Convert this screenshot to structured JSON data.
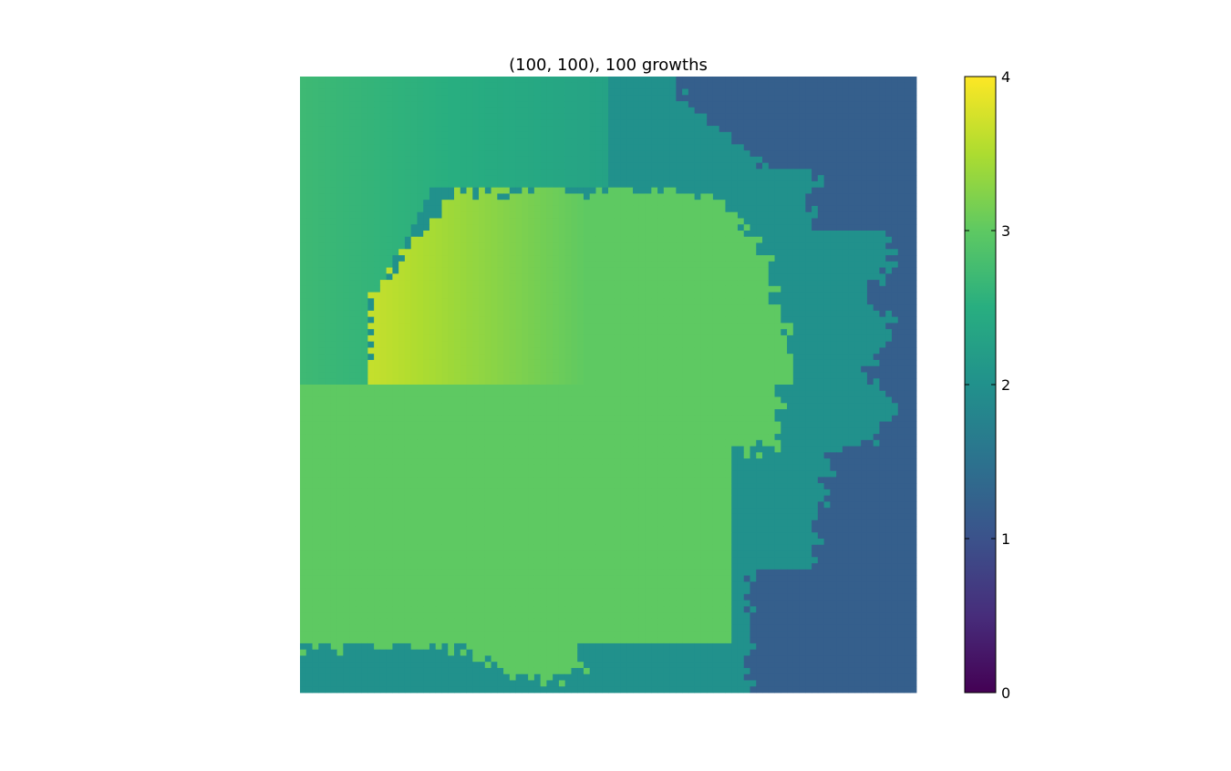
{
  "chart_data": {
    "type": "heatmap",
    "title": "(100, 100), 100 growths",
    "grid_shape": [
      100,
      100
    ],
    "xlabel": "",
    "ylabel": "",
    "axes_visible": false,
    "grid": false,
    "colormap": "viridis",
    "colorbar": {
      "range": [
        0,
        4
      ],
      "ticks": [
        0,
        1,
        2,
        3,
        4
      ],
      "tick_labels": [
        "0",
        "1",
        "2",
        "3",
        "4"
      ],
      "placement": "right"
    },
    "regions": [
      {
        "name": "outer",
        "value": 1.2,
        "description": "right edge band"
      },
      {
        "name": "band",
        "value": 2.0,
        "description": "ring around the blob"
      },
      {
        "name": "top-left",
        "value_range": [
          2.7,
          2.3
        ],
        "description": "gradient above midline, left to right"
      },
      {
        "name": "blob-lower",
        "value": 3.0
      },
      {
        "name": "blob-upper",
        "value_range": [
          3.85,
          3.0
        ],
        "description": "gradient inside blob above midline"
      }
    ],
    "colorscale": [
      "#440154",
      "#472d7b",
      "#3b528b",
      "#2c728e",
      "#21918c",
      "#28ae80",
      "#5ec962",
      "#addc30",
      "#fde725"
    ]
  }
}
